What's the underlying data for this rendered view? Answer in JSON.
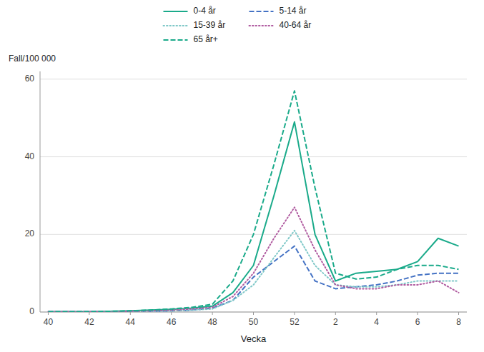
{
  "chart_data": {
    "type": "line",
    "x_label": "Vecka",
    "y_label": "Fall/100 000",
    "categories": [
      40,
      null,
      42,
      null,
      44,
      null,
      46,
      null,
      48,
      null,
      50,
      null,
      52,
      null,
      2,
      null,
      4,
      null,
      6,
      null,
      8
    ],
    "series": [
      {
        "name": "0-4 år",
        "color": "#1aaa8a",
        "line_style": "solid",
        "values": [
          0.1,
          0.1,
          0.1,
          0.2,
          0.3,
          0.5,
          0.7,
          1.0,
          1.5,
          5.0,
          12.0,
          30.0,
          49.0,
          20.0,
          8.0,
          10.0,
          10.5,
          11.0,
          13.0,
          19.0,
          17.0
        ]
      },
      {
        "name": "5-14 år",
        "color": "#4472c4",
        "line_style": "dashed",
        "values": [
          0.1,
          0.1,
          0.1,
          0.1,
          0.1,
          0.2,
          0.3,
          0.5,
          1.0,
          3.0,
          9.0,
          13.0,
          17.0,
          8.0,
          6.0,
          6.5,
          7.0,
          8.0,
          9.5,
          10.0,
          10.0
        ]
      },
      {
        "name": "15-39 år",
        "color": "#7fc8c8",
        "line_style": "dotted",
        "values": [
          0.1,
          0.1,
          0.1,
          0.1,
          0.1,
          0.2,
          0.3,
          0.5,
          0.8,
          3.0,
          7.0,
          14.0,
          21.0,
          12.0,
          7.0,
          6.5,
          6.5,
          7.0,
          8.0,
          8.0,
          8.0
        ]
      },
      {
        "name": "40-64 år",
        "color": "#b05ba0",
        "line_style": "dotted",
        "values": [
          0.1,
          0.1,
          0.1,
          0.1,
          0.2,
          0.3,
          0.5,
          0.8,
          1.2,
          4.0,
          10.0,
          19.0,
          27.0,
          16.0,
          7.0,
          6.0,
          6.0,
          7.0,
          7.0,
          8.0,
          5.0
        ]
      },
      {
        "name": "65 år+",
        "color": "#1aaa8a",
        "line_style": "dashed",
        "values": [
          0.1,
          0.1,
          0.1,
          0.2,
          0.3,
          0.5,
          0.8,
          1.2,
          2.0,
          8.0,
          20.0,
          38.0,
          57.0,
          32.0,
          10.0,
          8.5,
          9.0,
          11.0,
          12.0,
          12.0,
          11.0
        ]
      }
    ],
    "ylim": [
      0,
      62
    ],
    "yticks": [
      0,
      20,
      40,
      60
    ],
    "grid": true,
    "legend": "top"
  }
}
